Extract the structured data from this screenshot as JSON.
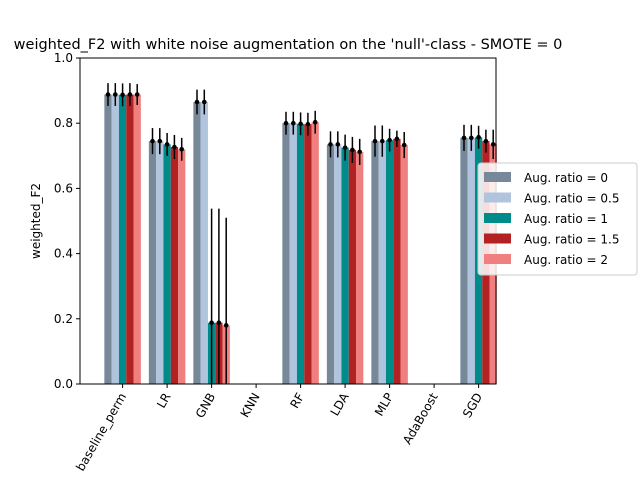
{
  "chart_data": {
    "type": "bar",
    "title": "weighted_F2 with white noise augmentation on the 'null'-class - SMOTE = 0",
    "ylabel": "weighted_F2",
    "xlabel": "",
    "ylim": [
      0,
      1.0
    ],
    "yticks": [
      "0.0",
      "0.2",
      "0.4",
      "0.6",
      "0.8",
      "1.0"
    ],
    "categories": [
      "baseline_perm",
      "LR",
      "GNB",
      "KNN",
      "RF",
      "LDA",
      "MLP",
      "AdaBoost",
      "SGD"
    ],
    "grid": false,
    "legend_position": "right",
    "series": [
      {
        "name": "Aug. ratio = 0",
        "color": "#778899",
        "values": [
          0.888,
          0.745,
          0.865,
          null,
          0.8,
          0.735,
          0.745,
          null,
          0.755
        ],
        "errors": [
          0.035,
          0.04,
          0.038,
          null,
          0.035,
          0.04,
          0.048,
          null,
          0.04
        ]
      },
      {
        "name": "Aug. ratio = 0.5",
        "color": "#b0c4de",
        "values": [
          0.888,
          0.745,
          0.865,
          null,
          0.8,
          0.735,
          0.745,
          null,
          0.755
        ],
        "errors": [
          0.035,
          0.04,
          0.038,
          null,
          0.035,
          0.04,
          0.048,
          null,
          0.04
        ]
      },
      {
        "name": "Aug. ratio = 1",
        "color": "#008b8b",
        "values": [
          0.887,
          0.735,
          0.188,
          null,
          0.798,
          0.725,
          0.748,
          null,
          0.757
        ],
        "errors": [
          0.035,
          0.035,
          0.35,
          null,
          0.035,
          0.04,
          0.035,
          null,
          0.035
        ]
      },
      {
        "name": "Aug. ratio = 1.5",
        "color": "#b22222",
        "values": [
          0.888,
          0.727,
          0.188,
          null,
          0.797,
          0.718,
          0.752,
          null,
          0.745
        ],
        "errors": [
          0.035,
          0.037,
          0.35,
          null,
          0.035,
          0.04,
          0.025,
          null,
          0.035
        ]
      },
      {
        "name": "Aug. ratio = 2",
        "color": "#f08080",
        "values": [
          0.888,
          0.72,
          0.18,
          null,
          0.803,
          0.712,
          0.733,
          null,
          0.735
        ],
        "errors": [
          0.032,
          0.035,
          0.33,
          null,
          0.035,
          0.04,
          0.04,
          null,
          0.045
        ]
      }
    ]
  }
}
